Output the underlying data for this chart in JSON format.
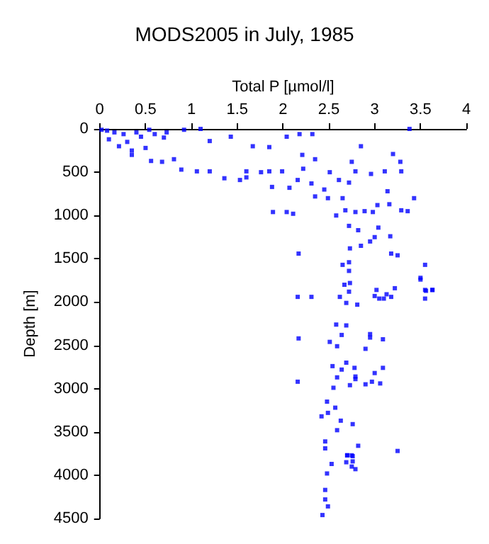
{
  "chart_data": {
    "type": "scatter",
    "title": "MODS2005 in July, 1985",
    "xlabel": "Total P [µmol/l]",
    "ylabel": "Depth [m]",
    "xlim": [
      0,
      4
    ],
    "xticks": [
      0,
      0.5,
      1,
      1.5,
      2,
      2.5,
      3,
      3.5,
      4
    ],
    "ylim": [
      4500,
      0
    ],
    "yticks": [
      0,
      500,
      1000,
      1500,
      2000,
      2500,
      3000,
      3500,
      4000,
      4500
    ],
    "grid": false,
    "marker": "square",
    "series": [
      {
        "color": "#0000ff",
        "x": [
          0.02,
          0.16,
          0.26,
          0.4,
          0.54,
          0.73,
          0.92,
          1.1,
          0.21,
          0.35,
          0.56,
          0.68,
          0.81,
          0.89,
          1.06,
          1.2,
          1.36,
          1.53,
          1.6,
          1.6,
          1.76,
          1.85,
          1.88,
          1.99,
          2.07,
          2.04,
          2.18,
          2.21,
          2.32,
          2.35,
          2.22,
          2.16,
          2.31,
          2.35,
          2.49,
          2.45,
          2.51,
          2.61,
          2.65,
          2.72,
          2.79,
          2.75,
          2.85,
          3.2,
          3.28,
          3.29,
          3.11,
          2.96,
          3.14,
          3.43,
          3.16,
          3.29,
          3.36,
          3.03,
          2.98,
          2.89,
          2.79,
          2.68,
          2.58,
          1.89,
          2.04,
          2.11,
          2.72,
          2.82,
          3.0,
          3.04,
          2.95,
          2.85,
          2.73,
          3.17,
          3.18,
          3.25,
          2.17,
          2.65,
          2.72,
          2.72,
          3.55,
          3.5,
          3.55,
          3.63,
          3.38,
          1.2,
          1.43,
          1.67,
          1.85,
          2.16,
          2.31,
          2.62,
          2.69,
          2.72,
          2.67,
          2.73,
          2.81,
          3.02,
          3.0,
          3.05,
          3.1,
          3.13,
          3.18,
          3.22,
          3.55,
          3.56,
          3.63,
          3.5,
          2.58,
          2.69,
          2.64,
          2.95,
          2.95,
          3.09,
          2.17,
          2.51,
          2.59,
          2.9,
          2.54,
          2.69,
          2.64,
          2.78,
          3.09,
          3.0,
          2.79,
          2.79,
          2.59,
          2.97,
          3.06,
          2.9,
          2.73,
          2.16,
          2.55,
          2.48,
          2.57,
          2.49,
          2.42,
          2.63,
          2.76,
          2.59,
          2.46,
          2.82,
          2.46,
          3.25,
          2.7,
          2.75,
          2.53,
          2.69,
          2.7,
          2.76,
          2.76,
          2.75,
          2.79,
          2.48,
          2.46,
          2.46,
          2.49,
          2.43,
          0.1,
          0.3,
          0.45,
          0.6,
          0.08,
          0.5,
          0.7,
          0.35
        ],
        "values": [
          10,
          40,
          60,
          40,
          10,
          40,
          10,
          0,
          200,
          300,
          370,
          380,
          350,
          470,
          490,
          490,
          570,
          590,
          560,
          490,
          500,
          490,
          670,
          490,
          680,
          90,
          60,
          300,
          60,
          350,
          460,
          590,
          630,
          780,
          800,
          700,
          500,
          590,
          800,
          620,
          490,
          380,
          200,
          290,
          380,
          490,
          490,
          520,
          720,
          800,
          870,
          940,
          950,
          880,
          960,
          950,
          960,
          940,
          1000,
          960,
          960,
          980,
          1120,
          1170,
          1250,
          1140,
          1300,
          1350,
          1380,
          1240,
          1440,
          1460,
          1440,
          1570,
          1540,
          1640,
          1570,
          1720,
          1860,
          1860,
          0,
          140,
          90,
          200,
          210,
          1940,
          1940,
          1940,
          2010,
          1880,
          1800,
          1780,
          2030,
          1860,
          1930,
          1960,
          1960,
          1910,
          1940,
          1840,
          1960,
          1870,
          1860,
          1740,
          2260,
          2270,
          2380,
          2370,
          2410,
          2430,
          2420,
          2460,
          2510,
          2540,
          2740,
          2700,
          2780,
          2760,
          2760,
          2820,
          2860,
          2890,
          2870,
          2920,
          2940,
          2950,
          2960,
          2920,
          2990,
          3150,
          3220,
          3280,
          3320,
          3370,
          3410,
          3480,
          3610,
          3660,
          3690,
          3720,
          3770,
          3770,
          3870,
          3850,
          3770,
          3780,
          3840,
          3900,
          3930,
          3980,
          4170,
          4280,
          4360,
          4460,
          120,
          150,
          90,
          60,
          20,
          220,
          100,
          250
        ]
      }
    ]
  }
}
